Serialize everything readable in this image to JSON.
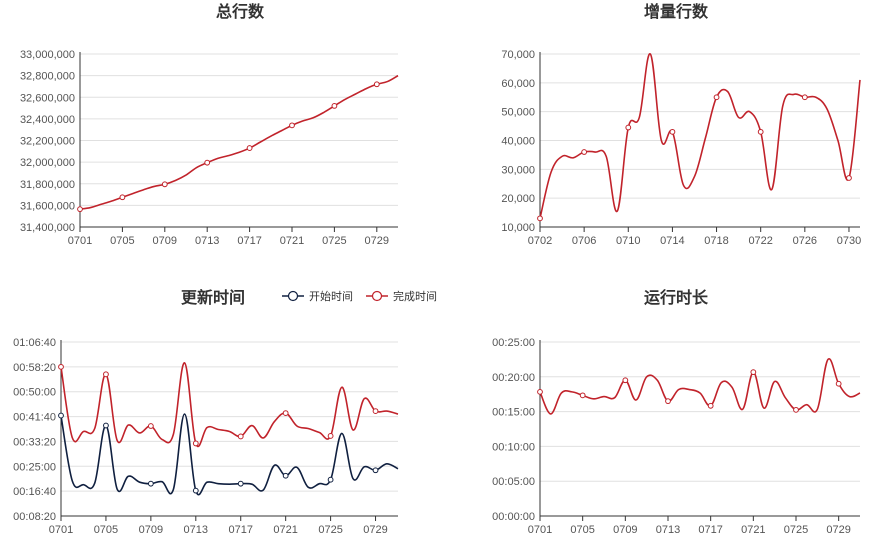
{
  "colors": {
    "red": "#c1232b",
    "navy": "#102040",
    "marker_fill": "#ffffff"
  },
  "chart_data": [
    {
      "type": "line",
      "title": "总行数",
      "categories": [
        "0701",
        "0702",
        "0703",
        "0704",
        "0705",
        "0706",
        "0707",
        "0708",
        "0709",
        "0710",
        "0711",
        "0712",
        "0713",
        "0714",
        "0715",
        "0716",
        "0717",
        "0718",
        "0719",
        "0720",
        "0721",
        "0722",
        "0723",
        "0724",
        "0725",
        "0726",
        "0727",
        "0728",
        "0729",
        "0730",
        "0731"
      ],
      "x_tick_labels": [
        "0701",
        "0705",
        "0709",
        "0713",
        "0717",
        "0721",
        "0725",
        "0729"
      ],
      "y_tick_labels": [
        "31,400,000",
        "31,600,000",
        "31,800,000",
        "32,000,000",
        "32,200,000",
        "32,400,000",
        "32,600,000",
        "32,800,000",
        "33,000,000"
      ],
      "ylim": [
        31400000,
        33000000
      ],
      "series": [
        {
          "values": [
            31565000,
            31580000,
            31610000,
            31640000,
            31675000,
            31710000,
            31745000,
            31775000,
            31795000,
            31830000,
            31880000,
            31950000,
            31995000,
            32035000,
            32060000,
            32090000,
            32130000,
            32185000,
            32240000,
            32290000,
            32340000,
            32380000,
            32410000,
            32460000,
            32520000,
            32580000,
            32630000,
            32680000,
            32720000,
            32745000,
            32800000
          ]
        }
      ]
    },
    {
      "type": "line",
      "title": "增量行数",
      "categories": [
        "0702",
        "0703",
        "0704",
        "0705",
        "0706",
        "0707",
        "0708",
        "0709",
        "0710",
        "0711",
        "0712",
        "0713",
        "0714",
        "0715",
        "0716",
        "0717",
        "0718",
        "0719",
        "0720",
        "0721",
        "0722",
        "0723",
        "0724",
        "0725",
        "0726",
        "0727",
        "0728",
        "0729",
        "0730",
        "0731"
      ],
      "x_tick_labels": [
        "0702",
        "0706",
        "0710",
        "0714",
        "0718",
        "0722",
        "0726",
        "0730"
      ],
      "y_tick_labels": [
        "10,000",
        "20,000",
        "30,000",
        "40,000",
        "50,000",
        "60,000",
        "70,000"
      ],
      "ylim": [
        10000,
        70000
      ],
      "series": [
        {
          "values": [
            13000,
            29000,
            34500,
            34000,
            36000,
            36000,
            34500,
            15500,
            44500,
            48000,
            70000,
            40000,
            43000,
            24500,
            27500,
            41000,
            55000,
            57000,
            48000,
            50000,
            43000,
            23000,
            52000,
            56000,
            55000,
            55000,
            51000,
            40000,
            27000,
            61000
          ]
        }
      ]
    },
    {
      "type": "line",
      "title": "更新时间",
      "legend": [
        "开始时间",
        "完成时间"
      ],
      "categories": [
        "0701",
        "0702",
        "0703",
        "0704",
        "0705",
        "0706",
        "0707",
        "0708",
        "0709",
        "0710",
        "0711",
        "0712",
        "0713",
        "0714",
        "0715",
        "0716",
        "0717",
        "0718",
        "0719",
        "0720",
        "0721",
        "0722",
        "0723",
        "0724",
        "0725",
        "0726",
        "0727",
        "0728",
        "0729",
        "0730",
        "0731"
      ],
      "x_tick_labels": [
        "0701",
        "0705",
        "0709",
        "0713",
        "0717",
        "0721",
        "0725",
        "0729"
      ],
      "y_tick_labels": [
        "00:08:20",
        "00:16:40",
        "00:25:00",
        "00:33:20",
        "00:41:40",
        "00:50:00",
        "00:58:20",
        "01:06:40"
      ],
      "ylim": [
        500,
        4000
      ],
      "series": [
        {
          "name": "开始时间",
          "values": [
            2520,
            1210,
            1130,
            1160,
            2320,
            1040,
            1300,
            1180,
            1150,
            1190,
            1030,
            2550,
            1010,
            1180,
            1150,
            1140,
            1150,
            1140,
            1020,
            1520,
            1310,
            1480,
            1080,
            1150,
            1230,
            2160,
            1250,
            1490,
            1420,
            1550,
            1450
          ]
        },
        {
          "name": "完成时间",
          "values": [
            3500,
            2080,
            2200,
            2260,
            3350,
            2020,
            2330,
            2170,
            2310,
            2040,
            2140,
            3580,
            1960,
            2280,
            2240,
            2200,
            2100,
            2320,
            2070,
            2400,
            2570,
            2310,
            2260,
            2180,
            2110,
            3090,
            2230,
            2860,
            2610,
            2610,
            2550
          ]
        }
      ]
    },
    {
      "type": "line",
      "title": "运行时长",
      "categories": [
        "0701",
        "0702",
        "0703",
        "0704",
        "0705",
        "0706",
        "0707",
        "0708",
        "0709",
        "0710",
        "0711",
        "0712",
        "0713",
        "0714",
        "0715",
        "0716",
        "0717",
        "0718",
        "0719",
        "0720",
        "0721",
        "0722",
        "0723",
        "0724",
        "0725",
        "0726",
        "0727",
        "0728",
        "0729",
        "0730",
        "0731"
      ],
      "x_tick_labels": [
        "0701",
        "0705",
        "0709",
        "0713",
        "0717",
        "0721",
        "0725",
        "0729"
      ],
      "y_tick_labels": [
        "00:00:00",
        "00:05:00",
        "00:10:00",
        "00:15:00",
        "00:20:00",
        "00:25:00"
      ],
      "ylim": [
        0,
        1500
      ],
      "series": [
        {
          "values": [
            1070,
            880,
            1060,
            1070,
            1040,
            1010,
            1030,
            1020,
            1170,
            1000,
            1200,
            1170,
            990,
            1090,
            1090,
            1060,
            950,
            1150,
            1110,
            920,
            1240,
            930,
            1160,
            1020,
            915,
            960,
            920,
            1350,
            1140,
            1030,
            1060
          ]
        }
      ]
    }
  ]
}
